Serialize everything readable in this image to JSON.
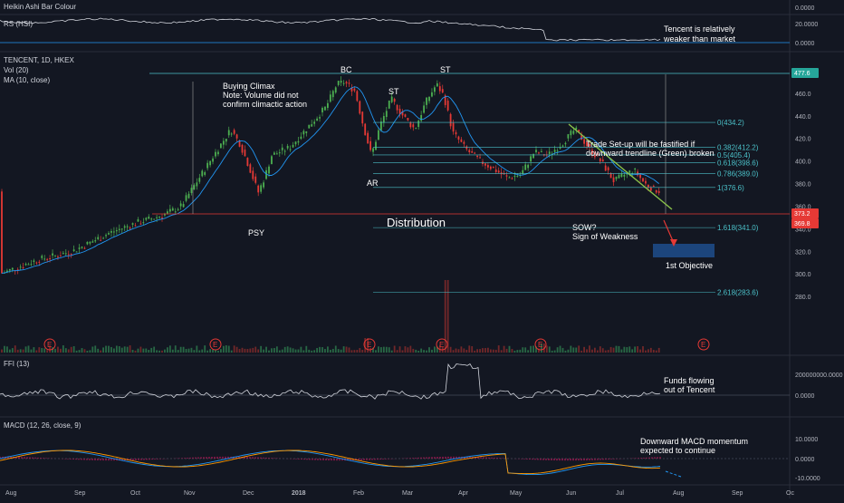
{
  "panes": {
    "heikin": {
      "title": "Heikin Ashi Bar Colour",
      "axis_value": "0.0000"
    },
    "rs": {
      "title": "RS (HSI)",
      "axis_values": [
        "20.0000",
        "0.0000"
      ],
      "annotation_lines": [
        "Tencent is relatively",
        "weaker than market"
      ]
    },
    "main": {
      "title": "TENCENT, 1D, HKEX",
      "indicators": [
        "Vol (20)",
        "MA (10, close)"
      ],
      "y_ticks": [
        "460.0",
        "440.0",
        "420.0",
        "400.0",
        "380.0",
        "360.0",
        "340.0",
        "320.0",
        "300.0",
        "280.0"
      ],
      "price_tags": [
        {
          "value": "477.6",
          "color": "#26a69a"
        },
        {
          "value": "373.2",
          "color": "#e53935"
        },
        {
          "value": "369.8",
          "color": "#e53935"
        }
      ],
      "fib_levels": [
        {
          "label": "0(434.2)",
          "price": 434.2
        },
        {
          "label": "0.382(412.2)",
          "price": 412.2
        },
        {
          "label": "0.5(405.4)",
          "price": 405.4
        },
        {
          "label": "0.618(398.6)",
          "price": 398.6
        },
        {
          "label": "0.786(389.0)",
          "price": 389.0
        },
        {
          "label": "1(376.6)",
          "price": 376.6
        },
        {
          "label": "1.618(341.0)",
          "price": 341.0
        },
        {
          "label": "2.618(283.6)",
          "price": 283.6
        }
      ],
      "annotations": {
        "bc": "BC",
        "st1": "ST",
        "st2": "ST",
        "ar": "AR",
        "psy": "PSY",
        "distribution": "Distribution",
        "buying_climax": [
          "Buying Climax",
          "Note: Volume did not",
          "confirm climactic action"
        ],
        "trade_setup": [
          "Trade Set-up will be fastified if",
          "downward trendline (Green) broken"
        ],
        "sow": [
          "SOW?",
          "Sign of Weakness"
        ],
        "objective": "1st Objective"
      },
      "earnings_marker": "E"
    },
    "ffi": {
      "title": "FFI (13)",
      "axis_values": [
        "200000000.0000",
        "0.0000"
      ],
      "annotation_lines": [
        "Funds flowing",
        "out of Tencent"
      ]
    },
    "macd": {
      "title": "MACD (12, 26, close, 9)",
      "axis_values": [
        "10.0000",
        "0.0000",
        "-10.0000"
      ],
      "annotation_lines": [
        "Downward MACD momentum",
        "expected to continue"
      ]
    }
  },
  "x_axis": [
    "Aug",
    "Sep",
    "Oct",
    "Nov",
    "Dec",
    "2018",
    "Feb",
    "Mar",
    "Apr",
    "May",
    "Jun",
    "Jul",
    "Aug",
    "Sep",
    "Oc"
  ],
  "colors": {
    "bull": "#4caf50",
    "bear": "#e53935",
    "ma": "#2196f3",
    "trendline": "#8bc34a",
    "fib": "#4bc0c8",
    "target_box": "#1e4d8c",
    "macd_signal": "#ff9800",
    "macd_line": "#2196f3"
  },
  "chart_data": {
    "type": "candlestick",
    "symbol": "TENCENT, 1D, HKEX",
    "ylim": [
      270,
      478
    ],
    "x": [
      "Aug",
      "Sep",
      "Oct",
      "Nov",
      "Dec",
      "2018",
      "Feb",
      "Mar",
      "Apr",
      "May",
      "Jun",
      "Jul",
      "Aug"
    ],
    "close": [
      300,
      320,
      350,
      425,
      372,
      475,
      410,
      465,
      390,
      380,
      425,
      373,
      373
    ],
    "fib_levels": {
      "0": 434.2,
      "0.382": 412.2,
      "0.5": 405.4,
      "0.618": 398.6,
      "0.786": 389.0,
      "1": 376.6,
      "1.618": 341.0,
      "2.618": 283.6
    },
    "last_price": 373.2,
    "support": 369.8,
    "high": 477.6
  }
}
